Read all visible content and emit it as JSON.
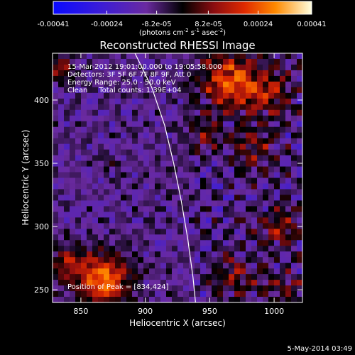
{
  "colorbar": {
    "tick_labels": [
      "-0.00041",
      "-0.00024",
      "-8.2e-05",
      "8.2e-05",
      "0.00024",
      "0.00041"
    ],
    "tick_values": [
      -0.00041,
      -0.00024,
      -8.2e-05,
      8.2e-05,
      0.00024,
      0.00041
    ],
    "range": [
      -0.00041,
      0.00041
    ],
    "units_prefix": "(photons cm",
    "units_exp1": "-2",
    "units_mid": " s",
    "units_exp2": "-1",
    "units_after": " asec",
    "units_exp3": "-2",
    "units_suffix": ")"
  },
  "chart_data": {
    "type": "heatmap",
    "title": "Reconstructed RHESSI Image",
    "xlabel": "Heliocentric X (arcsec)",
    "ylabel": "Heliocentric Y (arcsec)",
    "xlim": [
      828,
      1022
    ],
    "ylim": [
      240,
      437
    ],
    "x_ticks": [
      850,
      900,
      950,
      1000
    ],
    "y_ticks": [
      250,
      300,
      350,
      400
    ],
    "annotations": [
      "15-Mar-2012 19:01:00.000 to 19:05:58.000",
      "Detectors: 3F 5F 6F 7F 8F 9F, Att 0",
      "Energy Range: 25.0 - 50.0 keV",
      "Clean     Total counts: 1.39E+04"
    ],
    "peak_label": "Position of Peak = [834,424]",
    "peak": [
      834,
      424
    ],
    "limb_curve": [
      [
        892,
        437
      ],
      [
        905,
        410
      ],
      [
        915,
        380
      ],
      [
        922,
        350
      ],
      [
        928,
        320
      ],
      [
        933,
        290
      ],
      [
        937,
        260
      ],
      [
        939,
        240
      ]
    ],
    "sources": [
      {
        "x": 868,
        "y": 258,
        "amp": 0.00036,
        "sigma": 14
      },
      {
        "x": 840,
        "y": 270,
        "amp": 0.0002,
        "sigma": 10
      },
      {
        "x": 965,
        "y": 415,
        "amp": 0.0003,
        "sigma": 16
      },
      {
        "x": 995,
        "y": 405,
        "amp": 0.00018,
        "sigma": 14
      },
      {
        "x": 985,
        "y": 360,
        "amp": 0.00016,
        "sigma": 12
      },
      {
        "x": 1005,
        "y": 300,
        "amp": 0.00017,
        "sigma": 12
      },
      {
        "x": 970,
        "y": 260,
        "amp": 0.00015,
        "sigma": 13
      },
      {
        "x": 1010,
        "y": 250,
        "amp": 0.00013,
        "sigma": 10
      },
      {
        "x": 834,
        "y": 424,
        "amp": 0.0002,
        "sigma": 7
      },
      {
        "x": 870,
        "y": 352,
        "amp": 0.0001,
        "sigma": 5
      },
      {
        "x": 945,
        "y": 370,
        "amp": 0.00012,
        "sigma": 10
      }
    ],
    "background_level": -0.0001
  },
  "footer": {
    "timestamp": "5-May-2014 03:49"
  }
}
